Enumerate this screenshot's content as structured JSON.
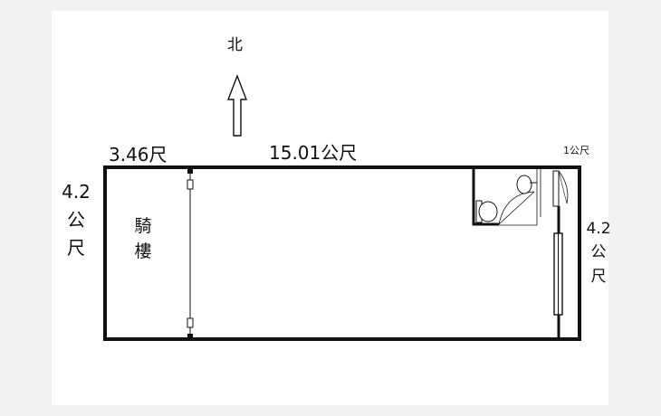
{
  "north": {
    "label": "北",
    "icon": "north-arrow-icon"
  },
  "dimensions": {
    "arcade_width": "3.46尺",
    "total_length": "15.01公尺",
    "small_width": "1公尺",
    "left_depth": {
      "number": "4.2",
      "unit_1": "公",
      "unit_2": "尺"
    },
    "right_depth": {
      "number": "4.2",
      "unit_1": "公",
      "unit_2": "尺"
    }
  },
  "rooms": {
    "arcade": {
      "char_1": "騎",
      "char_2": "樓"
    }
  },
  "fixtures": [
    "toilet-icon",
    "sink-icon",
    "door-swing-icon",
    "window-icon"
  ],
  "colors": {
    "wall": "#111111",
    "background": "#f2f2f2",
    "paper": "#ffffff"
  }
}
